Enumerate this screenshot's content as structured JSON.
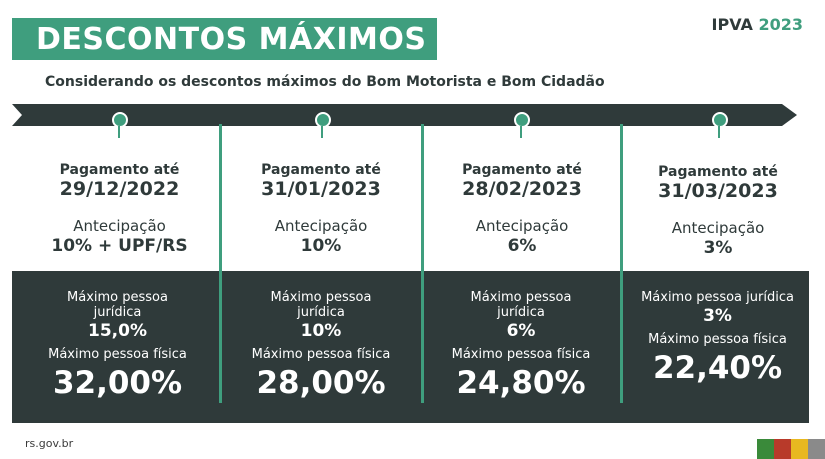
{
  "header": {
    "title": "DESCONTOS MÁXIMOS",
    "ipva_label": "IPVA",
    "ipva_year": "2023"
  },
  "subtitle": "Considerando os descontos máximos do Bom Motorista e Bom Cidadão",
  "columns": [
    {
      "pay_label": "Pagamento até",
      "pay_date": "29/12/2022",
      "ant_label": "Antecipação",
      "ant_value": "10% + UPF/RS",
      "pj_label": "Máximo pessoa jurídica",
      "pj_value": "15,0%",
      "pf_label": "Máximo pessoa física",
      "pf_value": "32,00%"
    },
    {
      "pay_label": "Pagamento até",
      "pay_date": "31/01/2023",
      "ant_label": "Antecipação",
      "ant_value": "10%",
      "pj_label": "Máximo pessoa jurídica",
      "pj_value": "10%",
      "pf_label": "Máximo pessoa física",
      "pf_value": "28,00%"
    },
    {
      "pay_label": "Pagamento até",
      "pay_date": "28/02/2023",
      "ant_label": "Antecipação",
      "ant_value": "6%",
      "pj_label": "Máximo pessoa jurídica",
      "pj_value": "6%",
      "pf_label": "Máximo pessoa física",
      "pf_value": "24,80%"
    },
    {
      "pay_label": "Pagamento até",
      "pay_date": "31/03/2023",
      "ant_label": "Antecipação",
      "ant_value": "3%",
      "pj_label": "Máximo pessoa jurídica",
      "pj_value": "3%",
      "pf_label": "Máximo pessoa física",
      "pf_value": "22,40%"
    }
  ],
  "footer": {
    "site": "rs.gov.br"
  },
  "colors": {
    "accent_green": "#3f9e7e",
    "dark_panel": "#2f3a3a",
    "flag_green": "#3a8a3a",
    "flag_red": "#b83a2a",
    "flag_yellow": "#e8b820",
    "flag_gray": "#8a8a8a"
  }
}
